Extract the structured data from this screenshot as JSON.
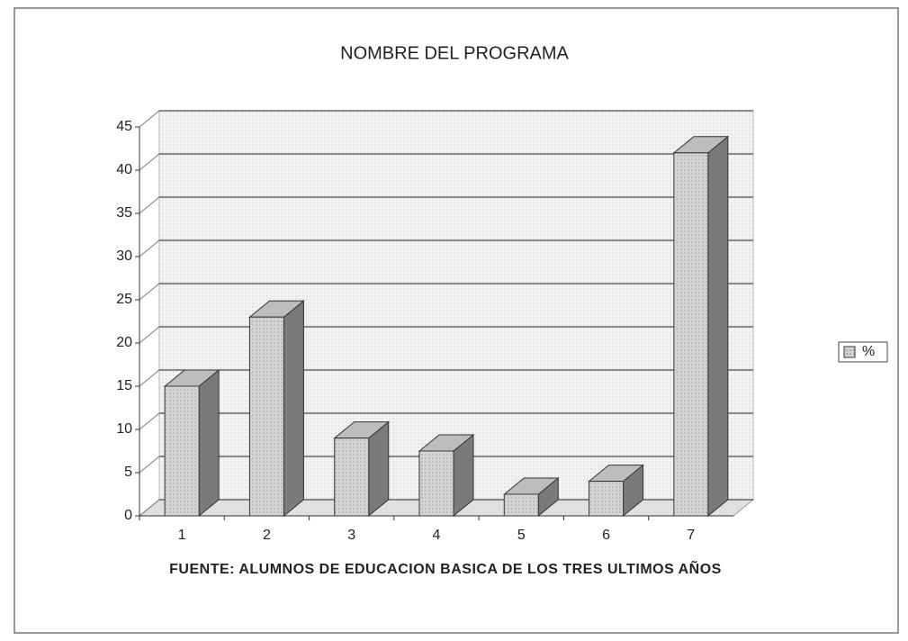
{
  "chart_data": {
    "type": "bar",
    "title": "NOMBRE DEL PROGRAMA",
    "xlabel": "FUENTE: ALUMNOS DE EDUCACION BASICA DE LOS TRES ULTIMOS AÑOS",
    "categories": [
      "1",
      "2",
      "3",
      "4",
      "5",
      "6",
      "7"
    ],
    "series": [
      {
        "name": "%",
        "color": "#d4d4d4",
        "values": [
          15,
          23,
          9,
          7.5,
          2.5,
          4,
          42
        ]
      }
    ],
    "ylim": [
      0,
      45
    ],
    "yticks": [
      0,
      5,
      10,
      15,
      20,
      25,
      30,
      35,
      40,
      45
    ],
    "grid": true,
    "legend": "right"
  }
}
